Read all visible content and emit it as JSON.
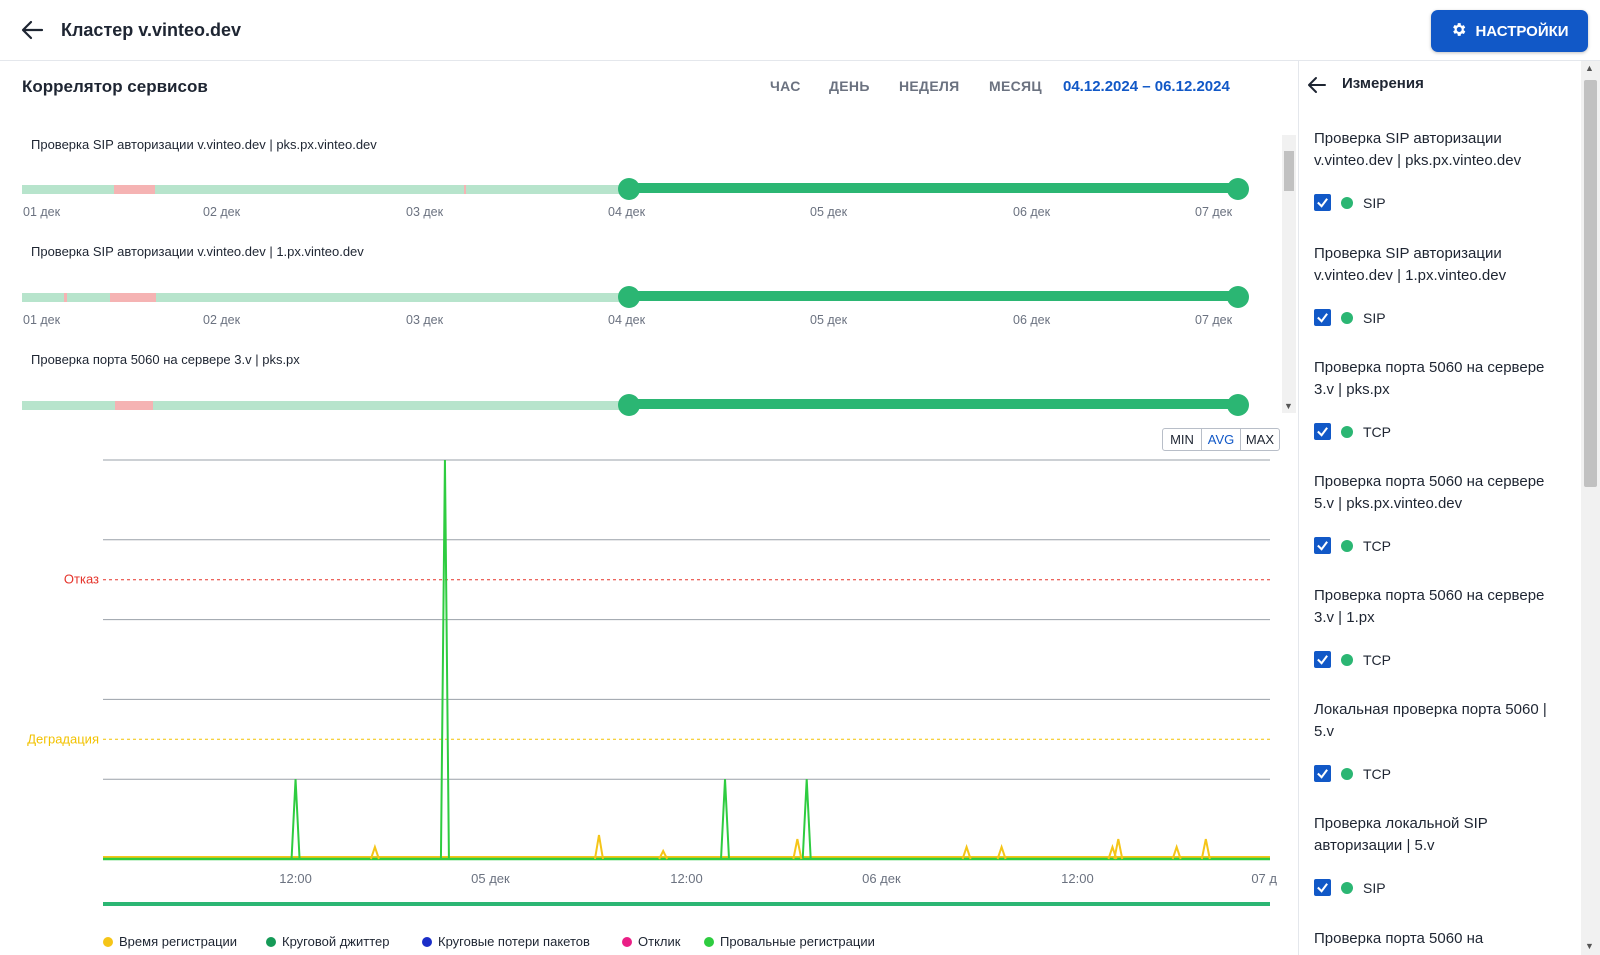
{
  "header": {
    "title": "Кластер v.vinteo.dev",
    "settings_label": "НАСТРОЙКИ"
  },
  "panel": {
    "title": "Коррелятор сервисов",
    "ranges": [
      "ЧАС",
      "ДЕНЬ",
      "НЕДЕЛЯ",
      "МЕСЯЦ"
    ],
    "date_range": "04.12.2024 – 06.12.2024"
  },
  "services": [
    {
      "name": "Проверка SIP авторизации v.vinteo.dev | pks.px.vinteo.dev"
    },
    {
      "name": "Проверка SIP авторизации v.vinteo.dev | 1.px.vinteo.dev"
    },
    {
      "name": "Проверка порта 5060 на сервере 3.v | pks.px"
    }
  ],
  "timeline_ticks": [
    "01 дек",
    "02 дек",
    "03 дек",
    "04 дек",
    "05 дек",
    "06 дек",
    "07 дек"
  ],
  "chart_controls": {
    "min": "MIN",
    "avg": "AVG",
    "max": "MAX"
  },
  "chart_data": {
    "type": "line",
    "thresholds": [
      {
        "label": "Отказ",
        "color": "#e5332a"
      },
      {
        "label": "Деградация",
        "color": "#f2c200"
      }
    ],
    "x_tick_labels": [
      "12:00",
      "05 дек",
      "12:00",
      "06 дек",
      "12:00",
      "07 д"
    ],
    "y_range": [
      0,
      5
    ],
    "grid": true,
    "legend_position": "bottom",
    "legend": [
      {
        "name": "Время регистрации",
        "color": "#f5c518"
      },
      {
        "name": "Круговой джиттер",
        "color": "#159a57"
      },
      {
        "name": "Круговые потери пакетов",
        "color": "#1b2ec8"
      },
      {
        "name": "Отклик",
        "color": "#ea1f86"
      },
      {
        "name": "Провальные регистрации",
        "color": "#2ecc40"
      }
    ],
    "series": [
      {
        "name": "Провальные регистрации",
        "spikes": [
          {
            "x": 0.165,
            "y": 1
          },
          {
            "x": 0.293,
            "y": 5
          },
          {
            "x": 0.533,
            "y": 1
          },
          {
            "x": 0.603,
            "y": 1
          }
        ]
      },
      {
        "name": "Время регистрации",
        "spikes": [
          {
            "x": 0.233,
            "y": 0.15
          },
          {
            "x": 0.425,
            "y": 0.3
          },
          {
            "x": 0.48,
            "y": 0.1
          },
          {
            "x": 0.595,
            "y": 0.25
          },
          {
            "x": 0.74,
            "y": 0.15
          },
          {
            "x": 0.77,
            "y": 0.15
          },
          {
            "x": 0.865,
            "y": 0.15
          },
          {
            "x": 0.87,
            "y": 0.25
          },
          {
            "x": 0.92,
            "y": 0.15
          },
          {
            "x": 0.945,
            "y": 0.25
          }
        ]
      }
    ]
  },
  "measurements": {
    "title": "Измерения",
    "items": [
      {
        "title": "Проверка SIP авторизации v.vinteo.dev | pks.px.vinteo.dev",
        "label": "SIP"
      },
      {
        "title": "Проверка SIP авторизации v.vinteo.dev | 1.px.vinteo.dev",
        "label": "SIP"
      },
      {
        "title": "Проверка порта 5060 на сервере 3.v | pks.px",
        "label": "TCP"
      },
      {
        "title": "Проверка порта 5060 на сервере 5.v | pks.px.vinteo.dev",
        "label": "TCP"
      },
      {
        "title": "Проверка порта 5060 на сервере 3.v | 1.px",
        "label": "TCP"
      },
      {
        "title": "Локальная проверка порта 5060 | 5.v",
        "label": "TCP"
      },
      {
        "title": "Проверка локальной SIP авторизации | 5.v",
        "label": "SIP"
      },
      {
        "title": "Проверка порта 5060 на",
        "label": ""
      }
    ]
  }
}
